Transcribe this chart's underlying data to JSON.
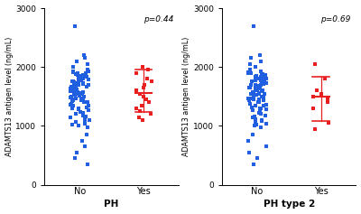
{
  "panel1": {
    "xlabel": "PH",
    "pvalue": "p=0.44",
    "yes_mean": 1560,
    "yes_upper": 1960,
    "yes_lower": 1230,
    "no_dots": [
      1550,
      1500,
      1480,
      1460,
      1440,
      1420,
      1600,
      1620,
      1580,
      1560,
      1700,
      1720,
      1680,
      1660,
      1640,
      1800,
      1820,
      1780,
      1760,
      1740,
      1900,
      1920,
      1880,
      1860,
      1840,
      1400,
      1380,
      1360,
      1340,
      1320,
      1300,
      1280,
      1260,
      1240,
      1220,
      1200,
      1180,
      1160,
      1140,
      1120,
      1100,
      1080,
      1060,
      1040,
      1020,
      1000,
      980,
      1650,
      1630,
      1610,
      1590,
      1570,
      1550,
      1530,
      1510,
      1490,
      1470,
      1450,
      1430,
      1410,
      1750,
      1730,
      1710,
      1690,
      1670,
      1850,
      1830,
      1810,
      1790,
      1770,
      1950,
      1930,
      1910,
      1890,
      1870,
      2000,
      2050,
      2100,
      2150,
      2200,
      850,
      750,
      650,
      550,
      450,
      350,
      1300,
      1350,
      1450,
      1550,
      1650,
      1700,
      1750,
      1800,
      1900,
      2700
    ],
    "yes_dots": [
      1900,
      1950,
      2000,
      1800,
      1750,
      1700,
      1650,
      1600,
      1550,
      1500,
      1450,
      1400,
      1350,
      1300,
      1250,
      1200,
      1150,
      1100
    ]
  },
  "panel2": {
    "xlabel": "PH type 2",
    "pvalue": "p=0.69",
    "yes_mean": 1490,
    "yes_upper": 1830,
    "yes_lower": 1080,
    "no_dots": [
      1550,
      1500,
      1480,
      1460,
      1440,
      1420,
      1600,
      1620,
      1580,
      1560,
      1700,
      1720,
      1680,
      1660,
      1640,
      1800,
      1820,
      1780,
      1760,
      1740,
      1900,
      1920,
      1880,
      1860,
      1840,
      1400,
      1380,
      1360,
      1340,
      1320,
      1300,
      1280,
      1260,
      1240,
      1220,
      1200,
      1180,
      1160,
      1140,
      1120,
      1100,
      1080,
      1060,
      1040,
      1020,
      1000,
      980,
      1650,
      1630,
      1610,
      1590,
      1570,
      1550,
      1530,
      1510,
      1490,
      1470,
      1450,
      1430,
      1410,
      1750,
      1730,
      1710,
      1690,
      1670,
      1850,
      1830,
      1810,
      1790,
      1770,
      1950,
      1930,
      1910,
      1890,
      1870,
      2000,
      2050,
      2100,
      2150,
      2200,
      850,
      750,
      650,
      550,
      450,
      350,
      1300,
      1350,
      1450,
      1550,
      1650,
      1700,
      1750,
      1800,
      1900,
      2700
    ],
    "yes_dots": [
      2050,
      1800,
      1600,
      1550,
      1500,
      1450,
      1400,
      1300,
      1050,
      950
    ]
  },
  "ylabel": "ADAMTS13 antigen level (ng/mL)",
  "ylim": [
    0,
    3000
  ],
  "yticks": [
    0,
    1000,
    2000,
    3000
  ],
  "blue_color": "#2060e0",
  "red_color": "#e82020",
  "bg_color": "#ffffff"
}
